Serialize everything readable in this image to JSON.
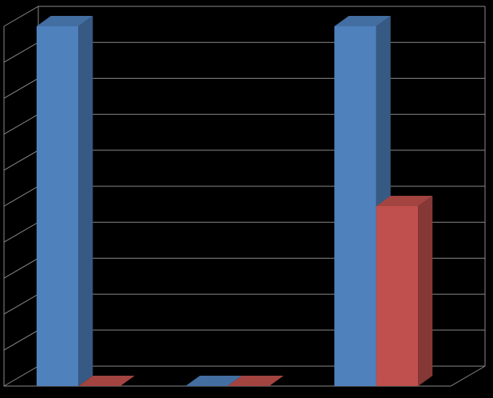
{
  "chart_data": {
    "type": "bar3d",
    "categories": [
      null,
      null,
      null
    ],
    "series": [
      {
        "color": "#4f81bd",
        "values": [
          10,
          0,
          10
        ]
      },
      {
        "color": "#c0504d",
        "values": [
          0,
          0,
          5
        ]
      }
    ],
    "ylim": [
      0,
      10
    ],
    "yticks": [
      0,
      1,
      2,
      3,
      4,
      5,
      6,
      7,
      8,
      9,
      10
    ],
    "grid": true
  }
}
